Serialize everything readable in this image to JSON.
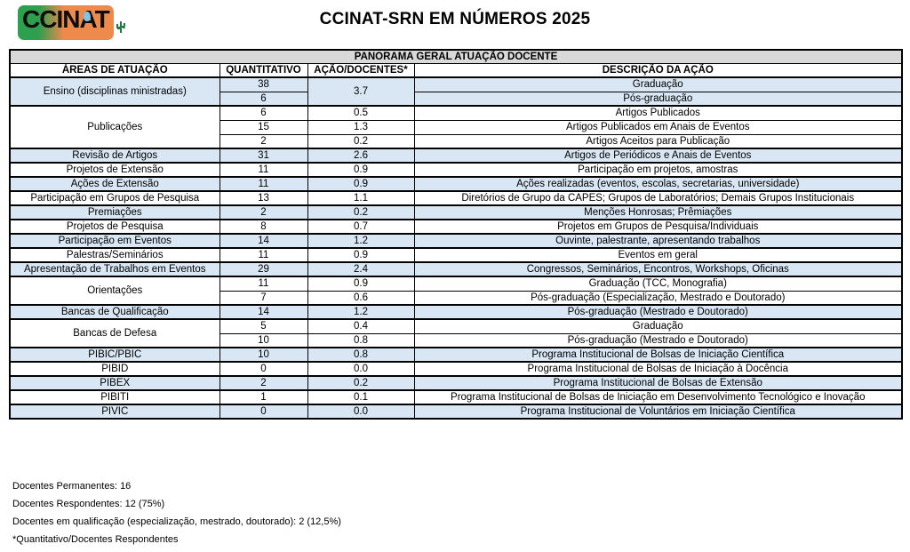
{
  "header": {
    "title": "CCINAT-SRN EM NÚMEROS 2025",
    "logo_text": "CCINAT",
    "logo_icon": "cactus-icon"
  },
  "colors": {
    "band_gray": "#d9d9d9",
    "row_blue": "#d9e6f4",
    "logo_green": "#2e9e4f",
    "logo_orange": "#ee8a4c",
    "logo_drop_blue": "#82c4e9",
    "cactus_green": "#1d7c3e"
  },
  "table": {
    "banner": "PANORAMA GERAL ATUAÇÃO DOCENTE",
    "columns": [
      "ÁREAS DE ATUAÇÃO",
      "QUANTITATIVO",
      "AÇÃO/DOCENTES*",
      "DESCRIÇÃO DA AÇÃO"
    ],
    "groups": [
      {
        "area": "Ensino (disciplinas ministradas)",
        "shade": "blue",
        "ratio_merged": "3.7",
        "rows": [
          {
            "qty": "38",
            "desc": "Graduação"
          },
          {
            "qty": "6",
            "desc": "Pós-graduação"
          }
        ]
      },
      {
        "area": "Publicações",
        "shade": "white",
        "rows": [
          {
            "qty": "6",
            "ratio": "0.5",
            "desc": "Artigos Publicados"
          },
          {
            "qty": "15",
            "ratio": "1.3",
            "desc": "Artigos Publicados em Anais de Eventos"
          },
          {
            "qty": "2",
            "ratio": "0.2",
            "desc": "Artigos Aceitos para Publicação"
          }
        ]
      },
      {
        "area": "Revisão de Artigos",
        "shade": "blue",
        "rows": [
          {
            "qty": "31",
            "ratio": "2.6",
            "desc": "Artigos de Periódicos e Anais de Eventos"
          }
        ]
      },
      {
        "area": "Projetos de Extensão",
        "shade": "white",
        "rows": [
          {
            "qty": "11",
            "ratio": "0.9",
            "desc": "Participação em projetos, amostras"
          }
        ]
      },
      {
        "area": "Ações de Extensão",
        "shade": "blue",
        "rows": [
          {
            "qty": "11",
            "ratio": "0.9",
            "desc": "Ações realizadas (eventos, escolas, secretarias, universidade)"
          }
        ]
      },
      {
        "area": "Participação em Grupos de Pesquisa",
        "shade": "white",
        "rows": [
          {
            "qty": "13",
            "ratio": "1.1",
            "desc": "Diretórios de Grupo da CAPES; Grupos de Laboratórios; Demais Grupos Institucionais"
          }
        ]
      },
      {
        "area": "Premiações",
        "shade": "blue",
        "rows": [
          {
            "qty": "2",
            "ratio": "0.2",
            "desc": "Menções Honrosas; Prêmiações"
          }
        ]
      },
      {
        "area": "Projetos de Pesquisa",
        "shade": "white",
        "rows": [
          {
            "qty": "8",
            "ratio": "0.7",
            "desc": "Projetos em Grupos de Pesquisa/Individuais"
          }
        ]
      },
      {
        "area": "Participação em Eventos",
        "shade": "blue",
        "rows": [
          {
            "qty": "14",
            "ratio": "1.2",
            "desc": "Ouvinte, palestrante, apresentando trabalhos"
          }
        ]
      },
      {
        "area": "Palestras/Seminários",
        "shade": "white",
        "rows": [
          {
            "qty": "11",
            "ratio": "0.9",
            "desc": "Eventos em geral"
          }
        ]
      },
      {
        "area": "Apresentação de Trabalhos em Eventos",
        "shade": "blue",
        "rows": [
          {
            "qty": "29",
            "ratio": "2.4",
            "desc": "Congressos, Seminários, Encontros, Workshops, Oficinas"
          }
        ]
      },
      {
        "area": "Orientações",
        "shade": "white",
        "rows": [
          {
            "qty": "11",
            "ratio": "0.9",
            "desc": "Graduação (TCC, Monografia)"
          },
          {
            "qty": "7",
            "ratio": "0.6",
            "desc": "Pós-graduação (Especialização, Mestrado e Doutorado)"
          }
        ]
      },
      {
        "area": "Bancas de Qualificação",
        "shade": "blue",
        "rows": [
          {
            "qty": "14",
            "ratio": "1.2",
            "desc": "Pós-graduação (Mestrado e Doutorado)"
          }
        ]
      },
      {
        "area": "Bancas de Defesa",
        "shade": "white",
        "rows": [
          {
            "qty": "5",
            "ratio": "0.4",
            "desc": "Graduação"
          },
          {
            "qty": "10",
            "ratio": "0.8",
            "desc": "Pós-graduação (Mestrado e Doutorado)"
          }
        ]
      },
      {
        "area": "PIBIC/PBIC",
        "shade": "blue",
        "rows": [
          {
            "qty": "10",
            "ratio": "0.8",
            "desc": "Programa Institucional de Bolsas de Iniciação Científica"
          }
        ]
      },
      {
        "area": "PIBID",
        "shade": "white",
        "rows": [
          {
            "qty": "0",
            "ratio": "0.0",
            "desc": "Programa Institucional de Bolsas de Iniciação à Docência"
          }
        ]
      },
      {
        "area": "PIBEX",
        "shade": "blue",
        "rows": [
          {
            "qty": "2",
            "ratio": "0.2",
            "desc": "Programa Institucional de Bolsas de Extensão"
          }
        ]
      },
      {
        "area": "PIBITI",
        "shade": "white",
        "rows": [
          {
            "qty": "1",
            "ratio": "0.1",
            "desc": "Programa Institucional de Bolsas de Iniciação em Desenvolvimento Tecnológico e Inovação"
          }
        ]
      },
      {
        "area": "PIVIC",
        "shade": "blue",
        "rows": [
          {
            "qty": "0",
            "ratio": "0.0",
            "desc": "Programa Institucional de Voluntários em Iniciação Científica"
          }
        ]
      }
    ]
  },
  "footnotes": [
    "Docentes Permanentes: 16",
    "Docentes Respondentes: 12 (75%)",
    "Docentes em qualificação (especialização, mestrado, doutorado): 2 (12,5%)",
    "*Quantitativo/Docentes Respondentes"
  ]
}
